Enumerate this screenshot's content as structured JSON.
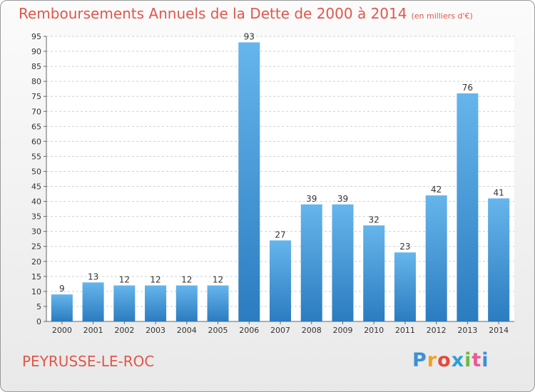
{
  "title": "Remboursements Annuels de la Dette de 2000 à 2014",
  "unit_label": "(en milliers d'€)",
  "commune": "PEYRUSSE-LE-ROC",
  "logo": {
    "letters": [
      "P",
      "r",
      "o",
      "x",
      "i",
      "t",
      "i"
    ],
    "colors": [
      "#3d8fd6",
      "#f2a023",
      "#e24a3b",
      "#2aa0d8",
      "#6fb83f",
      "#e85a96",
      "#3d8fd6"
    ]
  },
  "colors": {
    "bar_light": "#66b5ec",
    "bar_dark": "#2b7cc0",
    "axis": "#666666",
    "grid": "#cfcfcf",
    "text": "#333333",
    "title": "#e0574b"
  },
  "chart_data": {
    "type": "bar",
    "categories": [
      "2000",
      "2001",
      "2002",
      "2003",
      "2004",
      "2005",
      "2006",
      "2007",
      "2008",
      "2009",
      "2010",
      "2011",
      "2012",
      "2013",
      "2014"
    ],
    "values": [
      9,
      13,
      12,
      12,
      12,
      12,
      93,
      27,
      39,
      39,
      32,
      23,
      42,
      76,
      41
    ],
    "title": "Remboursements Annuels de la Dette de 2000 à 2014",
    "ylim": [
      0,
      95
    ],
    "yticks": [
      0,
      5,
      10,
      15,
      20,
      25,
      30,
      35,
      40,
      45,
      50,
      55,
      60,
      65,
      70,
      75,
      80,
      85,
      90,
      95
    ],
    "grid": true
  }
}
